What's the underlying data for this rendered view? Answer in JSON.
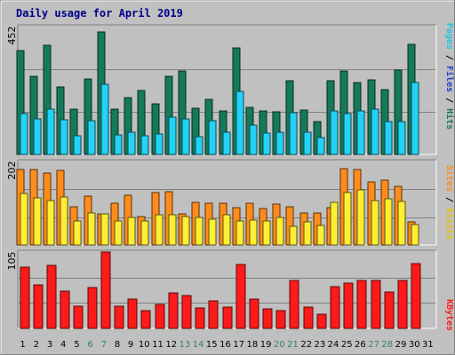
{
  "title": "Daily usage for April 2019",
  "colors": {
    "hits": "#157a5a",
    "files": "#22d3f5",
    "pages": "#22d3f5",
    "visits": "#ff8c1a",
    "sites": "#ffee33",
    "kbytes": "#ff1a1a",
    "weekday_label": "#000000",
    "weekend_label": "#2e8b57",
    "legend_hits": "#157a5a",
    "legend_files": "#1e3fd8",
    "legend_pages": "#22c5e6",
    "legend_visits": "#ff8c1a",
    "legend_sites": "#e6c200",
    "legend_kbytes": "#ff1a1a",
    "legend_separator": "#000000"
  },
  "legends": {
    "hits_panel": [
      "Pages",
      "Files",
      "Hits"
    ],
    "visits_panel": [
      "Sites",
      "Visits"
    ],
    "kbytes_panel": [
      "KBytes"
    ],
    "separator": " / "
  },
  "chart_data": {
    "type": "bar",
    "categories": [
      "1",
      "2",
      "3",
      "4",
      "5",
      "6",
      "7",
      "8",
      "9",
      "10",
      "11",
      "12",
      "13",
      "14",
      "15",
      "16",
      "17",
      "18",
      "19",
      "20",
      "21",
      "22",
      "23",
      "24",
      "25",
      "26",
      "27",
      "28",
      "29",
      "30",
      "31"
    ],
    "weekend_days": [
      "6",
      "7",
      "13",
      "14",
      "20",
      "21",
      "27",
      "28"
    ],
    "panels": [
      {
        "max_label": "452",
        "ylim": [
          0,
          452
        ],
        "series": [
          {
            "name": "Hits",
            "values": [
              368,
              275,
              385,
              240,
              160,
              268,
              432,
              160,
              200,
              225,
              178,
              275,
              295,
              162,
              195,
              154,
              378,
              165,
              153,
              150,
              262,
              156,
              117,
              262,
              296,
              253,
              263,
              230,
              298,
              390,
              0
            ]
          },
          {
            "name": "Files",
            "values": [
              145,
              125,
              160,
              122,
              67,
              120,
              247,
              68,
              80,
              67,
              73,
              133,
              126,
              63,
              120,
              80,
              222,
              105,
              76,
              78,
              147,
              80,
              60,
              155,
              143,
              153,
              160,
              115,
              116,
              255,
              0
            ]
          }
        ]
      },
      {
        "max_label": "202",
        "ylim": [
          0,
          202
        ],
        "series": [
          {
            "name": "Visits",
            "values": [
              182,
              182,
              175,
              180,
              93,
              118,
              76,
              100,
              120,
              68,
              126,
              130,
              75,
              103,
              100,
              100,
              91,
              101,
              88,
              99,
              93,
              78,
              77,
              90,
              185,
              183,
              152,
              157,
              141,
              55,
              0
            ]
          },
          {
            "name": "Sites",
            "values": [
              125,
              114,
              108,
              117,
              58,
              77,
              75,
              58,
              66,
              58,
              72,
              72,
              68,
              67,
              63,
              72,
              58,
              60,
              58,
              66,
              46,
              56,
              47,
              104,
              127,
              133,
              107,
              111,
              105,
              50,
              0
            ]
          }
        ]
      },
      {
        "max_label": "105",
        "ylim": [
          0,
          105
        ],
        "series": [
          {
            "name": "KBytes",
            "values": [
              84,
              60,
              87,
              51,
              30,
              56,
              105,
              30,
              40,
              25,
              33,
              49,
              45,
              28,
              38,
              29,
              88,
              40,
              27,
              25,
              66,
              29,
              19,
              57,
              62,
              66,
              66,
              50,
              66,
              89,
              0
            ]
          }
        ]
      }
    ]
  }
}
